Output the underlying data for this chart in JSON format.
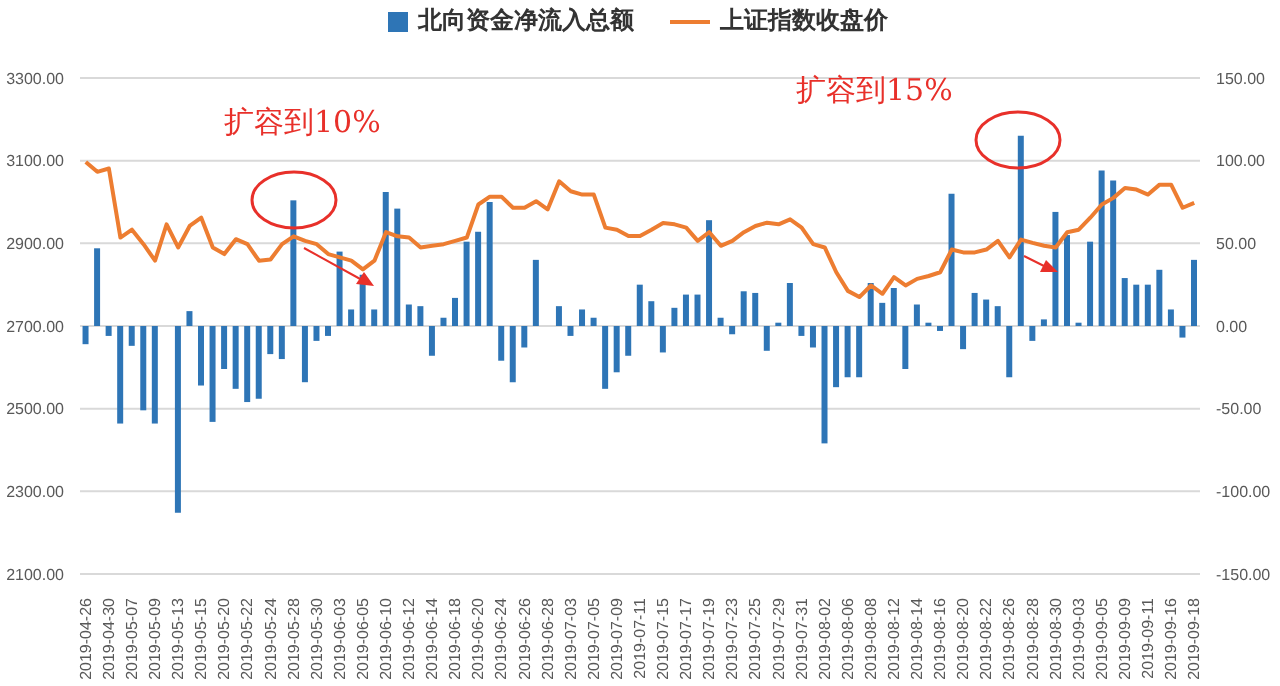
{
  "chart_data": {
    "type": "bar",
    "categories": [
      "2019-04-26",
      null,
      "2019-04-30",
      null,
      "2019-05-07",
      null,
      "2019-05-09",
      null,
      "2019-05-13",
      null,
      "2019-05-15",
      null,
      "2019-05-20",
      null,
      "2019-05-22",
      null,
      "2019-05-24",
      null,
      "2019-05-28",
      null,
      "2019-05-30",
      null,
      "2019-06-03",
      null,
      "2019-06-05",
      null,
      "2019-06-10",
      null,
      "2019-06-12",
      null,
      "2019-06-14",
      null,
      "2019-06-18",
      null,
      "2019-06-20",
      null,
      "2019-06-24",
      null,
      "2019-06-26",
      null,
      "2019-06-28",
      null,
      "2019-07-03",
      null,
      "2019-07-05",
      null,
      "2019-07-09",
      null,
      "2019-07-11",
      null,
      "2019-07-15",
      null,
      "2019-07-17",
      null,
      "2019-07-19",
      null,
      "2019-07-23",
      null,
      "2019-07-25",
      null,
      "2019-07-29",
      null,
      "2019-07-31",
      null,
      "2019-08-02",
      null,
      "2019-08-06",
      null,
      "2019-08-08",
      null,
      "2019-08-12",
      null,
      "2019-08-14",
      null,
      "2019-08-16",
      null,
      "2019-08-20",
      null,
      "2019-08-22",
      null,
      "2019-08-26",
      null,
      "2019-08-28",
      null,
      "2019-08-30",
      null,
      "2019-09-03",
      null,
      "2019-09-05",
      null,
      "2019-09-09",
      null,
      "2019-09-11",
      null,
      "2019-09-16",
      null,
      "2019-09-18"
    ],
    "series": [
      {
        "name": "北向资金净流入总额",
        "axis": "y2",
        "color": "#2e75b6",
        "values": [
          -11,
          47,
          -6,
          -59,
          -12,
          -51,
          -59,
          null,
          -113,
          9,
          -36,
          -58,
          -26,
          -38,
          -46,
          -44,
          -17,
          -20,
          76,
          -34,
          -9,
          -6,
          45,
          10,
          31,
          10,
          81,
          71,
          13,
          12,
          -18,
          5,
          17,
          51,
          57,
          75,
          -21,
          -34,
          -13,
          40,
          null,
          12,
          -6,
          10,
          5,
          -38,
          -28,
          -18,
          25,
          15,
          -16,
          11,
          19,
          19,
          64,
          5,
          -5,
          21,
          20,
          -15,
          2,
          26,
          -6,
          -13,
          -71,
          -37,
          -31,
          -31,
          26,
          14,
          23,
          -26,
          13,
          2,
          -3,
          80,
          -14,
          20,
          16,
          12,
          -31,
          115,
          -9,
          4,
          69,
          55,
          2,
          51,
          94,
          88,
          29,
          25,
          25,
          34,
          10,
          -7,
          40
        ]
      },
      {
        "name": "上证指数收盘价",
        "type": "line",
        "axis": "y",
        "color": "#ed7d31",
        "values": [
          3097,
          3073,
          3081,
          2914,
          2933,
          2898,
          2858,
          2946,
          2890,
          2942,
          2962,
          2890,
          2874,
          2910,
          2898,
          2858,
          2861,
          2898,
          2917,
          2906,
          2898,
          2874,
          2866,
          2858,
          2837,
          2858,
          2927,
          2917,
          2914,
          2890,
          2894,
          2898,
          2906,
          2914,
          2994,
          3013,
          3013,
          2986,
          2986,
          3002,
          2982,
          3050,
          3026,
          3018,
          3018,
          2938,
          2933,
          2918,
          2918,
          2933,
          2949,
          2946,
          2938,
          2906,
          2927,
          2894,
          2906,
          2927,
          2942,
          2950,
          2946,
          2958,
          2938,
          2898,
          2890,
          2830,
          2785,
          2770,
          2798,
          2778,
          2818,
          2798,
          2814,
          2821,
          2830,
          2885,
          2878,
          2878,
          2885,
          2906,
          2866,
          2909,
          2901,
          2894,
          2890,
          2927,
          2933,
          2962,
          2994,
          3010,
          3034,
          3030,
          3018,
          3042,
          3042,
          2986,
          2998
        ]
      }
    ],
    "ylim": [
      2100,
      3300
    ],
    "yticks": [
      {
        "value": 2100,
        "label": "2100.00"
      },
      {
        "value": 2300,
        "label": "2300.00"
      },
      {
        "value": 2500,
        "label": "2500.00"
      },
      {
        "value": 2700,
        "label": "2700.00"
      },
      {
        "value": 2900,
        "label": "2900.00"
      },
      {
        "value": 3100,
        "label": "3100.00"
      },
      {
        "value": 3300,
        "label": "3300.00"
      }
    ],
    "y2lim": [
      -150,
      150
    ],
    "y2ticks": [
      {
        "value": -150,
        "label": "-150.00"
      },
      {
        "value": -100,
        "label": "-100.00"
      },
      {
        "value": -50,
        "label": "-50.00"
      },
      {
        "value": 0,
        "label": "0.00"
      },
      {
        "value": 50,
        "label": "50.00"
      },
      {
        "value": 100,
        "label": "100.00"
      },
      {
        "value": 150,
        "label": "150.00"
      }
    ],
    "grid": "y",
    "legend": "top",
    "annotations": [
      "扩容到10%",
      "扩容到15%"
    ]
  }
}
